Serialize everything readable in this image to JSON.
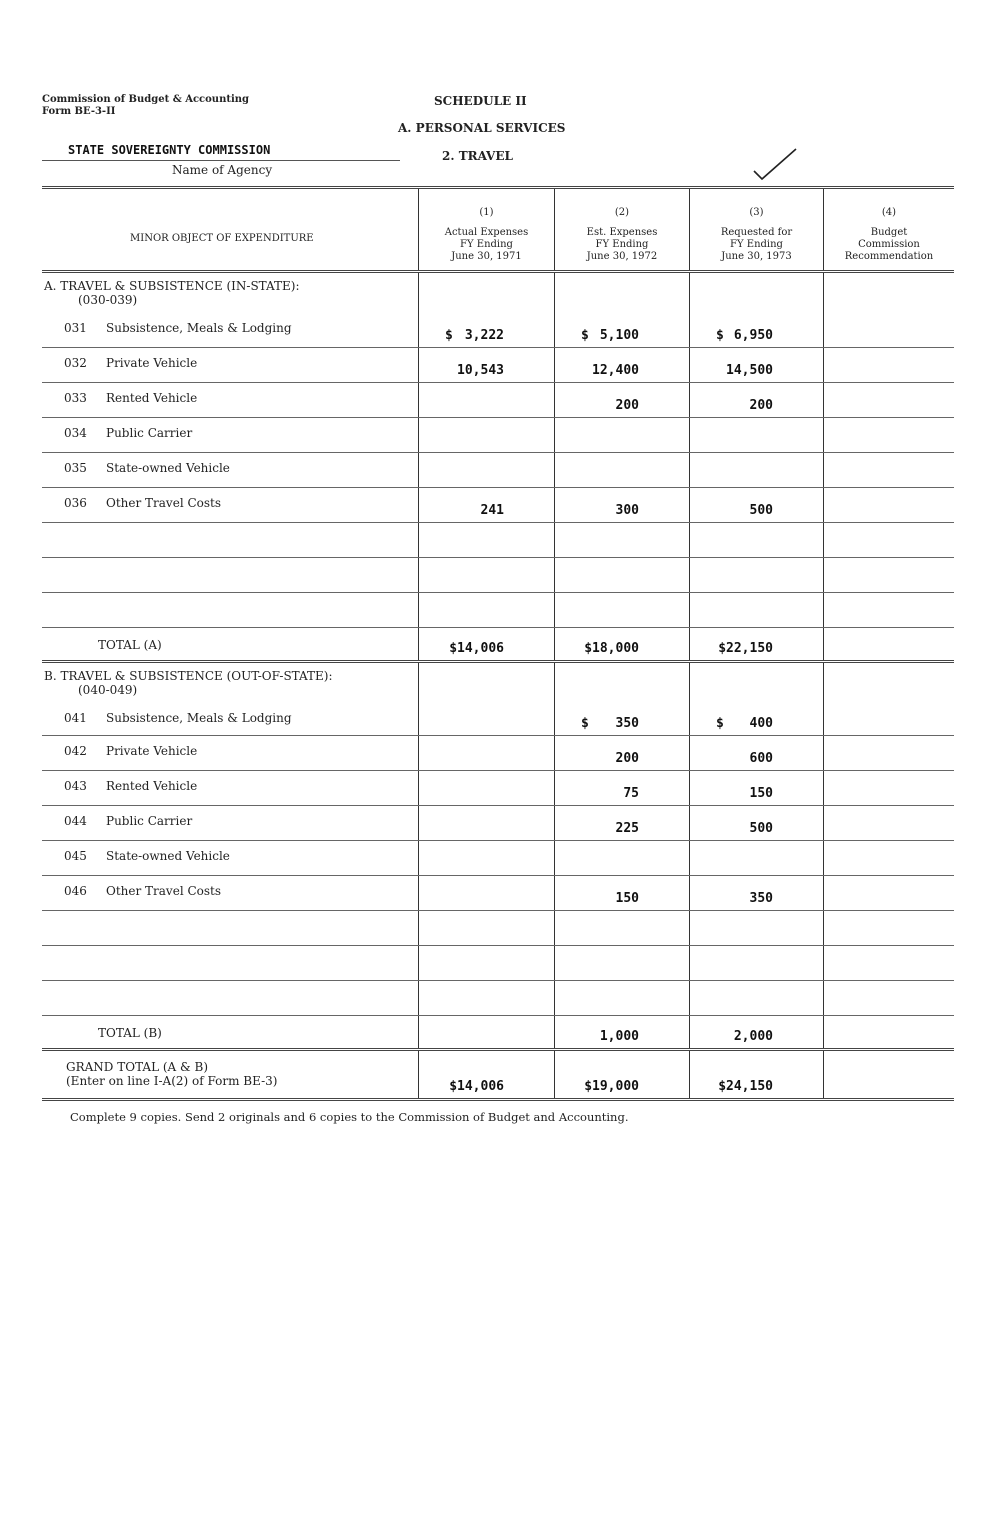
{
  "header": {
    "issuer_line1": "Commission of Budget & Accounting",
    "issuer_line2": "Form BE-3-II",
    "schedule": "SCHEDULE II",
    "section": "A. PERSONAL SERVICES",
    "subsection": "2. TRAVEL",
    "agency_name": "STATE SOVEREIGNTY COMMISSION",
    "agency_label": "Name of Agency"
  },
  "columns": {
    "label": "MINOR OBJECT OF EXPENDITURE",
    "c1": {
      "num": "(1)",
      "l1": "Actual Expenses",
      "l2": "FY Ending",
      "l3": "June 30, 1971"
    },
    "c2": {
      "num": "(2)",
      "l1": "Est. Expenses",
      "l2": "FY Ending",
      "l3": "June 30, 1972"
    },
    "c3": {
      "num": "(3)",
      "l1": "Requested for",
      "l2": "FY Ending",
      "l3": "June 30, 1973"
    },
    "c4": {
      "num": "(4)",
      "l1": "Budget",
      "l2": "Commission",
      "l3": "Recommendation"
    }
  },
  "rows": [
    {
      "type": "heading",
      "label": "A. TRAVEL & SUBSISTENCE (IN-STATE):",
      "sub": "(030-039)"
    },
    {
      "type": "item",
      "code": "031",
      "label": "Subsistence, Meals & Lodging",
      "values": [
        "3,222",
        "5,100",
        "6,950",
        ""
      ],
      "dollar": [
        true,
        true,
        true,
        false
      ]
    },
    {
      "type": "item",
      "code": "032",
      "label": "Private Vehicle",
      "values": [
        "10,543",
        "12,400",
        "14,500",
        ""
      ]
    },
    {
      "type": "item",
      "code": "033",
      "label": "Rented Vehicle",
      "values": [
        "",
        "200",
        "200",
        ""
      ]
    },
    {
      "type": "item",
      "code": "034",
      "label": "Public Carrier",
      "values": [
        "",
        "",
        "",
        ""
      ]
    },
    {
      "type": "item",
      "code": "035",
      "label": "State-owned Vehicle",
      "values": [
        "",
        "",
        "",
        ""
      ]
    },
    {
      "type": "item",
      "code": "036",
      "label": "Other Travel Costs",
      "values": [
        "241",
        "300",
        "500",
        ""
      ]
    },
    {
      "type": "blank"
    },
    {
      "type": "blank"
    },
    {
      "type": "blank"
    },
    {
      "type": "total",
      "label": "TOTAL (A)",
      "values": [
        "$14,006",
        "$18,000",
        "$22,150",
        ""
      ]
    },
    {
      "type": "heading",
      "label": "B. TRAVEL & SUBSISTENCE (OUT-OF-STATE):",
      "sub": "(040-049)"
    },
    {
      "type": "item",
      "code": "041",
      "label": "Subsistence, Meals & Lodging",
      "values": [
        "",
        "350",
        "400",
        ""
      ],
      "dollar": [
        false,
        true,
        true,
        false
      ]
    },
    {
      "type": "item",
      "code": "042",
      "label": "Private Vehicle",
      "values": [
        "",
        "200",
        "600",
        ""
      ]
    },
    {
      "type": "item",
      "code": "043",
      "label": "Rented Vehicle",
      "values": [
        "",
        "75",
        "150",
        ""
      ]
    },
    {
      "type": "item",
      "code": "044",
      "label": "Public Carrier",
      "values": [
        "",
        "225",
        "500",
        ""
      ]
    },
    {
      "type": "item",
      "code": "045",
      "label": "State-owned Vehicle",
      "values": [
        "",
        "",
        "",
        ""
      ]
    },
    {
      "type": "item",
      "code": "046",
      "label": "Other Travel Costs",
      "values": [
        "",
        "150",
        "350",
        ""
      ]
    },
    {
      "type": "blank"
    },
    {
      "type": "blank"
    },
    {
      "type": "blank"
    },
    {
      "type": "total",
      "label": "TOTAL (B)",
      "values": [
        "",
        "1,000",
        "2,000",
        ""
      ]
    },
    {
      "type": "grand",
      "label": "GRAND TOTAL (A & B)",
      "sub": "(Enter on line I-A(2) of Form BE-3)",
      "values": [
        "$14,006",
        "$19,000",
        "$24,150",
        ""
      ]
    }
  ],
  "footer": "Complete 9 copies. Send 2 originals and 6 copies to the Commission of Budget and Accounting."
}
